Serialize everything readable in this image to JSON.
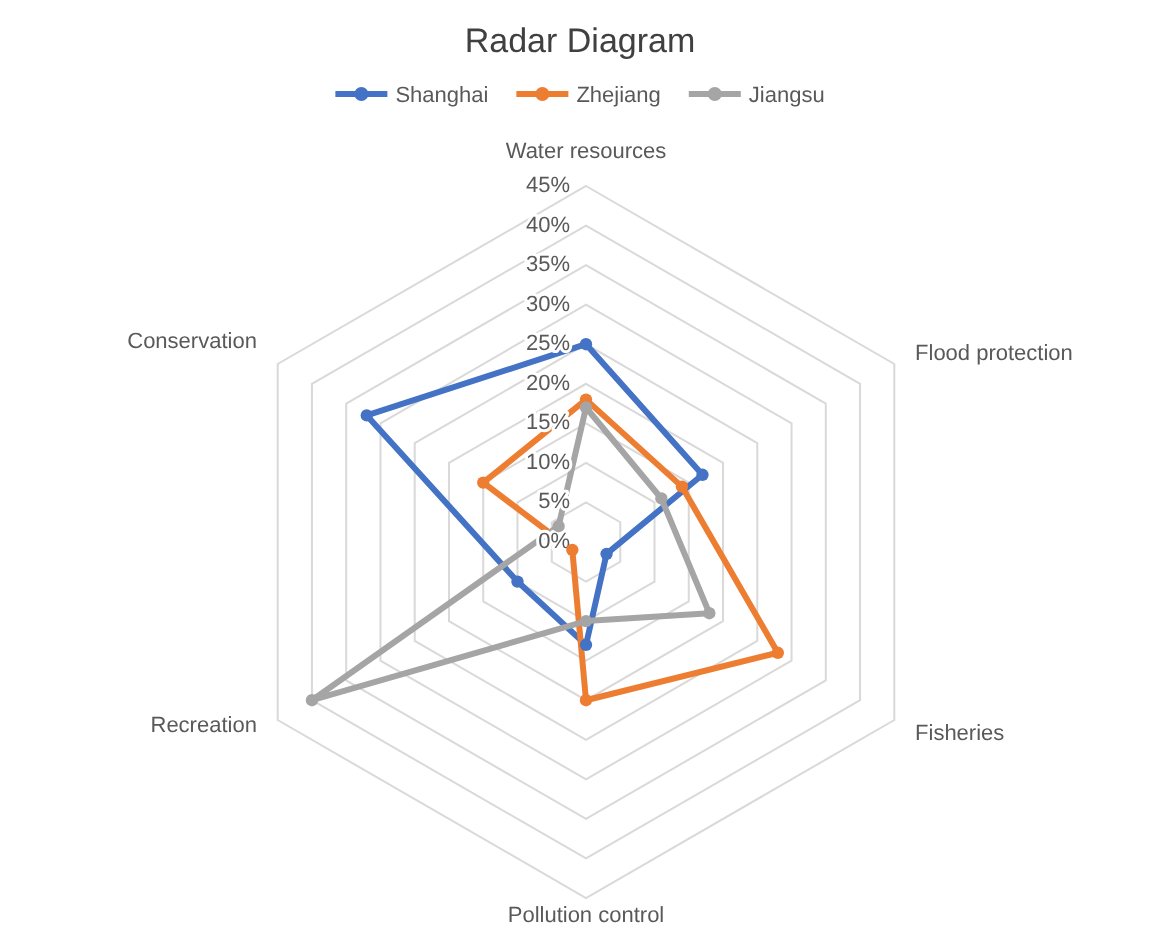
{
  "chart_data": {
    "type": "radar",
    "title": "Radar Diagram",
    "categories": [
      "Water resources",
      "Flood protection",
      "Fisheries",
      "Pollution control",
      "Recreation",
      "Conservation"
    ],
    "series": [
      {
        "name": "Shanghai",
        "color": "#4472c4",
        "values": [
          25,
          17,
          3,
          13,
          10,
          32
        ]
      },
      {
        "name": "Zhejiang",
        "color": "#ed7d31",
        "values": [
          18,
          14,
          28,
          20,
          2,
          15
        ]
      },
      {
        "name": "Jiangsu",
        "color": "#a5a5a5",
        "values": [
          17,
          11,
          18,
          10,
          40,
          4
        ]
      }
    ],
    "ylim": [
      0,
      45
    ],
    "yticks": [
      {
        "value": 0,
        "label": "0%"
      },
      {
        "value": 5,
        "label": "5%"
      },
      {
        "value": 10,
        "label": "10%"
      },
      {
        "value": 15,
        "label": "15%"
      },
      {
        "value": 20,
        "label": "20%"
      },
      {
        "value": 25,
        "label": "25%"
      },
      {
        "value": 30,
        "label": "30%"
      },
      {
        "value": 35,
        "label": "35%"
      },
      {
        "value": 40,
        "label": "40%"
      },
      {
        "value": 45,
        "label": "45%"
      }
    ],
    "grid": true,
    "legend": "top",
    "marker": "circle",
    "line_style": "solid"
  }
}
